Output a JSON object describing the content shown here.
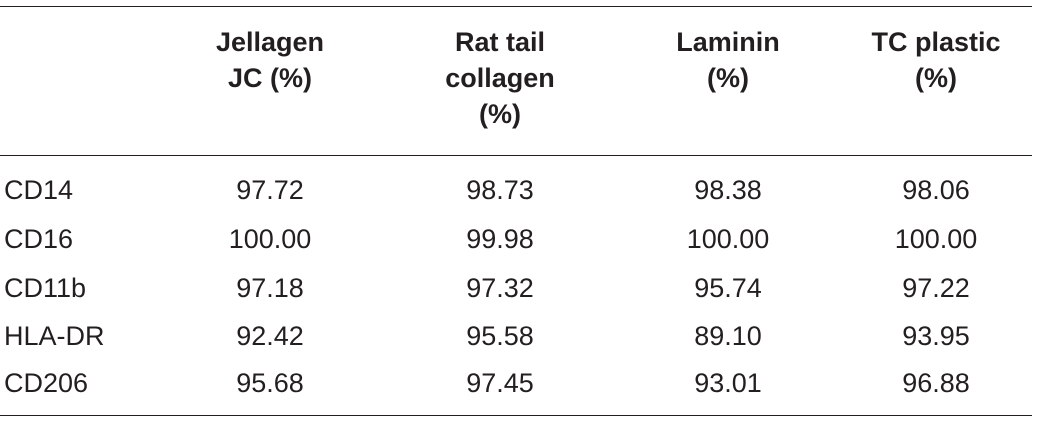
{
  "table": {
    "columns": [
      "Jellagen\nJC (%)",
      "Rat tail\ncollagen\n(%)",
      "Laminin\n(%)",
      "TC plastic\n(%)"
    ],
    "rows": [
      {
        "label": "CD14",
        "values": [
          "97.72",
          "98.73",
          "98.38",
          "98.06"
        ]
      },
      {
        "label": "CD16",
        "values": [
          "100.00",
          "99.98",
          "100.00",
          "100.00"
        ]
      },
      {
        "label": "CD11b",
        "values": [
          "97.18",
          "97.32",
          "95.74",
          "97.22"
        ]
      },
      {
        "label": "HLA-DR",
        "values": [
          "92.42",
          "95.58",
          "89.10",
          "93.95"
        ]
      },
      {
        "label": "CD206",
        "values": [
          "95.68",
          "97.45",
          "93.01",
          "96.88"
        ]
      }
    ]
  }
}
